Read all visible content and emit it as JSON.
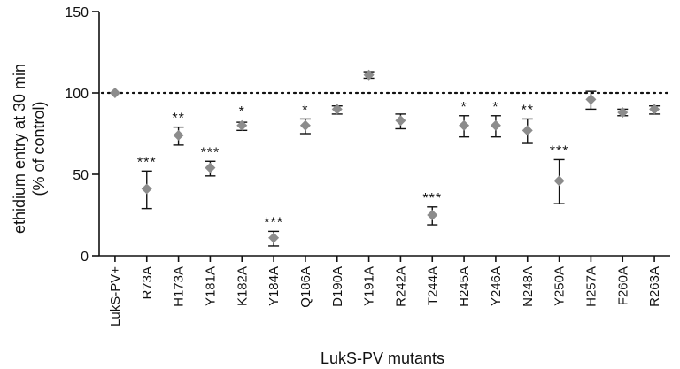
{
  "chart_data": {
    "type": "scatter",
    "xlabel": "LukS-PV mutants",
    "ylabel_line1": "ethidium entry at 30 min",
    "ylabel_line2": "(% of control)",
    "ylim": [
      0,
      150
    ],
    "yticks": [
      0,
      50,
      100,
      150
    ],
    "reference_line": 100,
    "marker_color": "#8c8c8c",
    "categories": [
      "LukS-PV+",
      "R73A",
      "H173A",
      "Y181A",
      "K182A",
      "Y184A",
      "Q186A",
      "D190A",
      "Y191A",
      "R242A",
      "T244A",
      "H245A",
      "Y246A",
      "N248A",
      "Y250A",
      "H257A",
      "F260A",
      "R263A"
    ],
    "values": [
      100,
      41,
      74,
      54,
      80,
      11,
      80,
      90,
      111,
      83,
      25,
      80,
      80,
      77,
      46,
      96,
      88,
      90
    ],
    "error_low": [
      100,
      29,
      68,
      49,
      77,
      6,
      75,
      87,
      109,
      78,
      19,
      73,
      73,
      69,
      32,
      90,
      86,
      87
    ],
    "error_high": [
      100,
      52,
      79,
      58,
      82,
      15,
      84,
      92,
      113,
      87,
      30,
      86,
      86,
      84,
      59,
      101,
      90,
      92
    ],
    "significance": [
      "",
      "***",
      "**",
      "***",
      "*",
      "***",
      "*",
      "",
      "",
      "",
      "***",
      "*",
      "*",
      "**",
      "***",
      "",
      "",
      ""
    ]
  }
}
